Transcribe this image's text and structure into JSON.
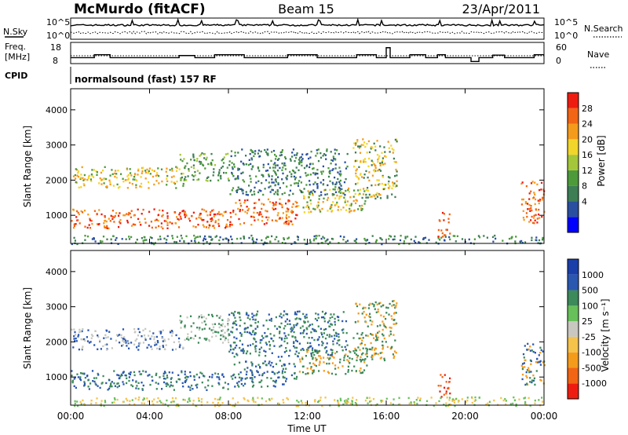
{
  "header": {
    "station": "McMurdo (fitACF)",
    "beam": "Beam 15",
    "date": "23/Apr/2011"
  },
  "summary_panels": {
    "nsky_label": "N.Sky",
    "nsearch_label": "N.Search",
    "noise_ticks": [
      "10^5",
      "10^0"
    ],
    "freq_label_1": "Freq.",
    "freq_label_2": "[MHz]",
    "freq_ticks": [
      "18",
      "8"
    ],
    "nave_label": "Nave",
    "nave_ticks": [
      "60",
      "0"
    ],
    "cpid_label": "CPID",
    "cpid_text": "normalsound (fast) 157 RF"
  },
  "chart_data": [
    {
      "type": "heatmap",
      "title": "",
      "ylabel": "Slant Range [km]",
      "xlabel": "",
      "ylim": [
        200,
        4600
      ],
      "yticks": [
        1000,
        2000,
        3000,
        4000
      ],
      "xlim": [
        0,
        24
      ],
      "colorbar": {
        "label": "Power [dB]",
        "ticks": [
          "28",
          "24",
          "20",
          "16",
          "12",
          "8",
          "4"
        ],
        "colors": [
          "#0000ff",
          "#2a4fa0",
          "#3d7e55",
          "#4d9a3a",
          "#a4c639",
          "#f2d52a",
          "#f59b1c",
          "#f26514",
          "#ee1c10"
        ]
      }
    },
    {
      "type": "heatmap",
      "title": "",
      "ylabel": "Slant Range [km]",
      "xlabel": "Time UT",
      "ylim": [
        200,
        4600
      ],
      "yticks": [
        1000,
        2000,
        3000,
        4000
      ],
      "xlim": [
        0,
        24
      ],
      "xtick_labels": [
        "00:00",
        "04:00",
        "08:00",
        "12:00",
        "16:00",
        "20:00",
        "00:00"
      ],
      "colorbar": {
        "label": "Velocity [m s⁻¹]",
        "ticks": [
          "1000",
          "500",
          "100",
          "25",
          "-25",
          "-100",
          "-500",
          "-1000"
        ],
        "colors": [
          "#ee1c10",
          "#f26514",
          "#f59b1c",
          "#f5c24a",
          "#c8c8c0",
          "#67c05a",
          "#3d8a5a",
          "#2a57b0",
          "#1a3fa8"
        ]
      }
    }
  ]
}
